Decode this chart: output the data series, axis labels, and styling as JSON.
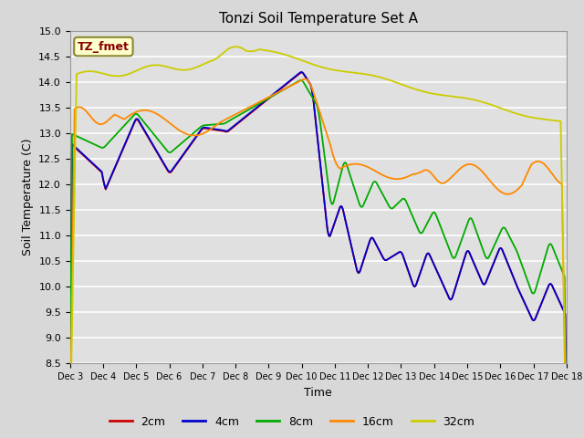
{
  "title": "Tonzi Soil Temperature Set A",
  "xlabel": "Time",
  "ylabel": "Soil Temperature (C)",
  "ylim": [
    8.5,
    15.0
  ],
  "yticks": [
    8.5,
    9.0,
    9.5,
    10.0,
    10.5,
    11.0,
    11.5,
    12.0,
    12.5,
    13.0,
    13.5,
    14.0,
    14.5,
    15.0
  ],
  "xtick_labels": [
    "Dec 3",
    "Dec 4",
    "Dec 5",
    "Dec 6",
    "Dec 7",
    "Dec 8",
    "Dec 9",
    "Dec 10",
    "Dec 11",
    "Dec 12",
    "Dec 13",
    "Dec 14",
    "Dec 15",
    "Dec 16",
    "Dec 17",
    "Dec 18"
  ],
  "series_colors": {
    "2cm": "#cc0000",
    "4cm": "#0000cc",
    "8cm": "#00aa00",
    "16cm": "#ff8800",
    "32cm": "#cccc00"
  },
  "legend_label": "TZ_fmet",
  "legend_bg": "#ffffcc",
  "legend_border": "#888833",
  "legend_text_color": "#880000",
  "fig_bg": "#d8d8d8",
  "plot_bg": "#e0e0e0",
  "grid_color": "#ffffff"
}
